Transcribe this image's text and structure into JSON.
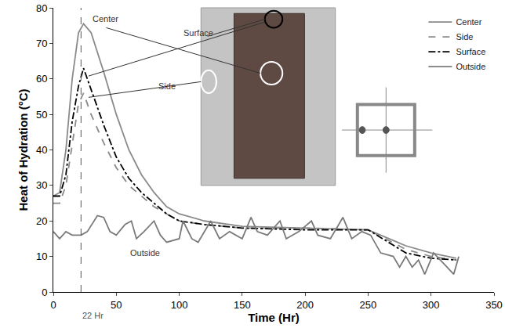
{
  "chart_data": {
    "type": "line",
    "x_label": "Time (Hr)",
    "y_label": "Heat of Hydration (°C)",
    "xlim": [
      0,
      350
    ],
    "xticks": [
      0,
      50,
      100,
      150,
      200,
      250,
      300,
      350
    ],
    "ylim": [
      0,
      80
    ],
    "yticks": [
      0,
      10,
      20,
      30,
      40,
      50,
      60,
      70,
      80
    ],
    "grid": false,
    "legend": "top right",
    "series": [
      {
        "name": "Center",
        "color": "#8a8a8a",
        "line_style": "solid",
        "x": [
          0,
          5,
          10,
          15,
          20,
          24,
          30,
          40,
          50,
          60,
          70,
          80,
          90,
          100,
          120,
          150,
          200,
          250,
          280,
          300,
          320
        ],
        "values": [
          27,
          28,
          40,
          60,
          73,
          75.5,
          73,
          62,
          50,
          40,
          33,
          28,
          24,
          22,
          20,
          18.5,
          18,
          17.5,
          13,
          11,
          9.5
        ]
      },
      {
        "name": "Side",
        "color": "#8a8a8a",
        "line_style": "dash",
        "x": [
          0,
          5,
          10,
          15,
          20,
          24,
          30,
          40,
          50,
          60,
          70,
          80,
          90,
          100,
          120,
          150,
          200,
          250,
          280,
          300,
          320
        ],
        "values": [
          25,
          25,
          30,
          42,
          53,
          56,
          50,
          42,
          35,
          30,
          27,
          24,
          22,
          20,
          19,
          18,
          18,
          17.5,
          12,
          10,
          9
        ]
      },
      {
        "name": "Surface",
        "color": "#000000",
        "line_style": "dashdot",
        "x": [
          0,
          5,
          10,
          15,
          20,
          24,
          30,
          40,
          50,
          60,
          70,
          80,
          90,
          100,
          120,
          150,
          200,
          250,
          280,
          300,
          320
        ],
        "values": [
          27,
          27,
          33,
          48,
          58,
          63,
          57,
          47,
          38,
          32,
          28,
          25,
          22,
          20,
          19,
          18,
          17.5,
          17.5,
          11,
          9.5,
          9
        ]
      },
      {
        "name": "Outside",
        "color": "#7a7a7a",
        "line_style": "solid",
        "x": [
          0,
          5,
          10,
          15,
          22,
          27,
          35,
          40,
          45,
          50,
          57,
          62,
          66,
          72,
          80,
          85,
          90,
          100,
          103,
          110,
          115,
          125,
          132,
          140,
          150,
          157,
          162,
          170,
          180,
          185,
          195,
          205,
          210,
          220,
          230,
          237,
          245,
          252,
          260,
          270,
          275,
          280,
          285,
          290,
          295,
          302,
          310,
          318,
          322
        ],
        "values": [
          17,
          15,
          17,
          16,
          16,
          17,
          21.5,
          21,
          17,
          16,
          19,
          20,
          15,
          17,
          20,
          16,
          14,
          15,
          20,
          15,
          14,
          20,
          15,
          17,
          15,
          21,
          17,
          16,
          20,
          15,
          17,
          20,
          16,
          15,
          21,
          15,
          17,
          16,
          11,
          10,
          7,
          10,
          7,
          9,
          5,
          11,
          8,
          5,
          10
        ]
      }
    ],
    "annotations": [
      {
        "text": "22 Hr",
        "x": 22,
        "marker": "vline"
      },
      {
        "text": "Center",
        "x": 30,
        "y": 77
      },
      {
        "text": "Surface",
        "x": 102,
        "y": 73
      },
      {
        "text": "Side",
        "x": 82,
        "y": 58
      },
      {
        "text": "Outside",
        "x": 60,
        "y": 11
      }
    ]
  }
}
